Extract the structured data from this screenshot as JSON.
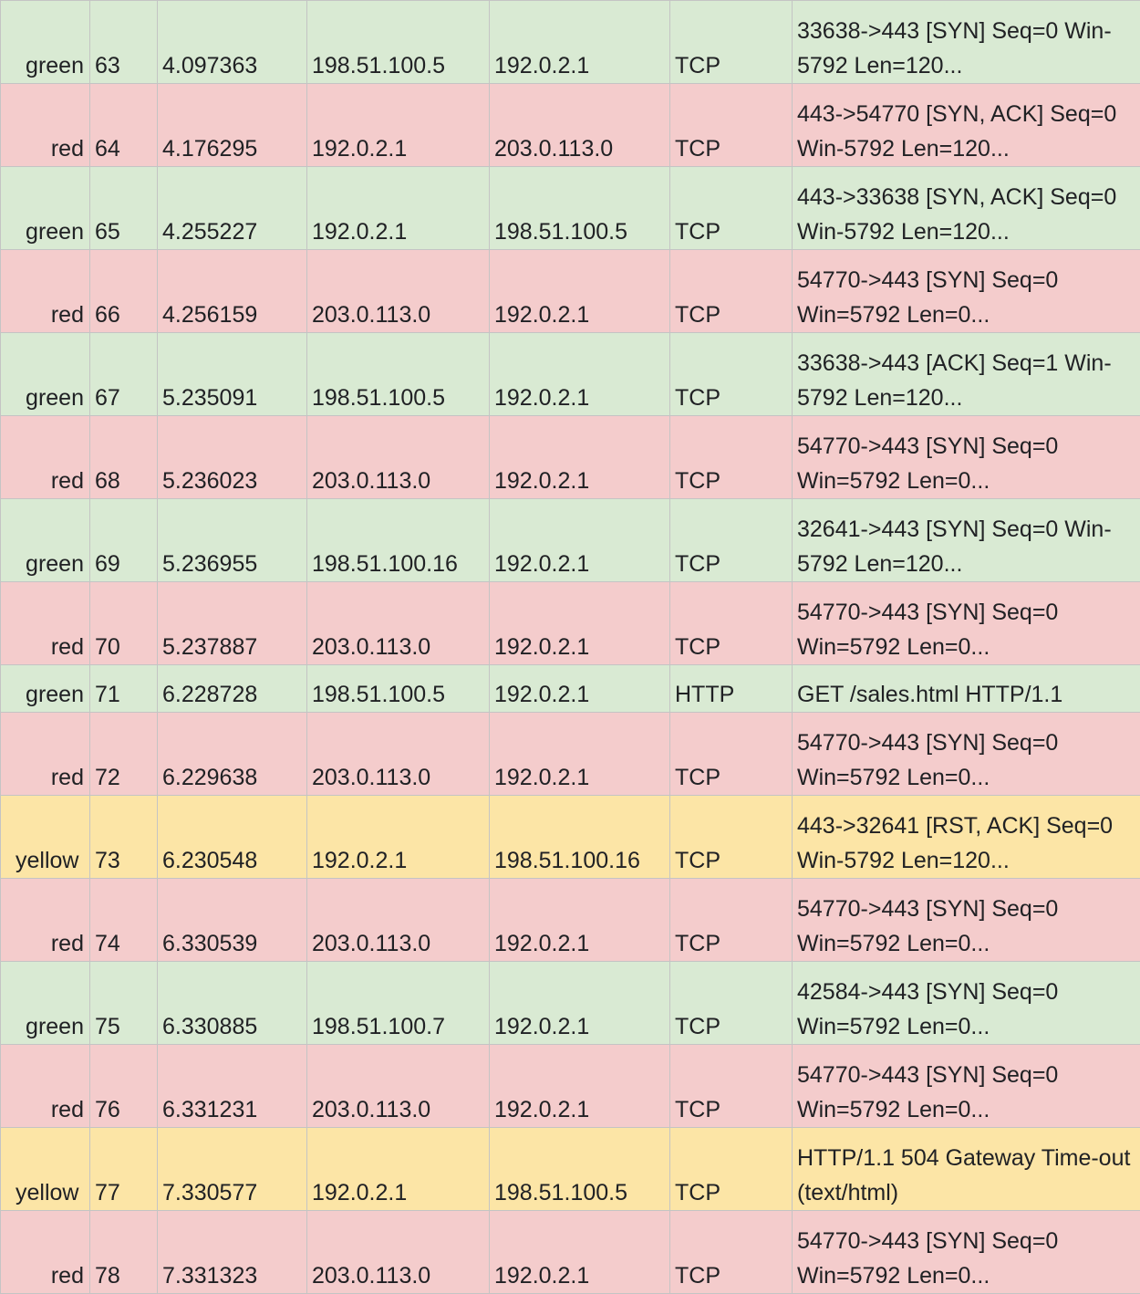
{
  "palette": {
    "green": "#d9ead3",
    "red": "#f4cccc",
    "yellow": "#fce5a6",
    "grid": "#c4c4c4",
    "text": "#202124"
  },
  "rows": [
    {
      "color": "green",
      "no": "63",
      "time": "4.097363",
      "source": "198.51.100.5",
      "destination": "192.0.2.1",
      "protocol": "TCP",
      "info": "33638->443 [SYN] Seq=0 Win-5792 Len=120..."
    },
    {
      "color": "red",
      "no": "64",
      "time": "4.176295",
      "source": "192.0.2.1",
      "destination": "203.0.113.0",
      "protocol": "TCP",
      "info": "443->54770 [SYN, ACK] Seq=0 Win-5792 Len=120..."
    },
    {
      "color": "green",
      "no": "65",
      "time": "4.255227",
      "source": "192.0.2.1",
      "destination": "198.51.100.5",
      "protocol": "TCP",
      "info": "443->33638 [SYN, ACK] Seq=0 Win-5792 Len=120..."
    },
    {
      "color": "red",
      "no": "66",
      "time": "4.256159",
      "source": "203.0.113.0",
      "destination": "192.0.2.1",
      "protocol": "TCP",
      "info": "54770->443 [SYN] Seq=0 Win=5792 Len=0..."
    },
    {
      "color": "green",
      "no": "67",
      "time": "5.235091",
      "source": "198.51.100.5",
      "destination": "192.0.2.1",
      "protocol": "TCP",
      "info": "33638->443 [ACK] Seq=1 Win-5792 Len=120..."
    },
    {
      "color": "red",
      "no": "68",
      "time": "5.236023",
      "source": "203.0.113.0",
      "destination": "192.0.2.1",
      "protocol": "TCP",
      "info": "54770->443 [SYN] Seq=0 Win=5792 Len=0..."
    },
    {
      "color": "green",
      "no": "69",
      "time": "5.236955",
      "source": "198.51.100.16",
      "destination": "192.0.2.1",
      "protocol": "TCP",
      "info": "32641->443 [SYN] Seq=0 Win-5792 Len=120..."
    },
    {
      "color": "red",
      "no": "70",
      "time": "5.237887",
      "source": "203.0.113.0",
      "destination": "192.0.2.1",
      "protocol": "TCP",
      "info": "54770->443 [SYN] Seq=0 Win=5792 Len=0..."
    },
    {
      "color": "green",
      "no": "71",
      "time": "6.228728",
      "source": "198.51.100.5",
      "destination": "192.0.2.1",
      "protocol": "HTTP",
      "info": "GET /sales.html HTTP/1.1"
    },
    {
      "color": "red",
      "no": "72",
      "time": "6.229638",
      "source": "203.0.113.0",
      "destination": "192.0.2.1",
      "protocol": "TCP",
      "info": "54770->443 [SYN] Seq=0 Win=5792 Len=0..."
    },
    {
      "color": "yellow",
      "no": "73",
      "time": "6.230548",
      "source": "192.0.2.1",
      "destination": "198.51.100.16",
      "protocol": "TCP",
      "info": "443->32641 [RST, ACK] Seq=0 Win-5792 Len=120..."
    },
    {
      "color": "red",
      "no": "74",
      "time": "6.330539",
      "source": "203.0.113.0",
      "destination": "192.0.2.1",
      "protocol": "TCP",
      "info": "54770->443 [SYN] Seq=0 Win=5792 Len=0..."
    },
    {
      "color": "green",
      "no": "75",
      "time": "6.330885",
      "source": "198.51.100.7",
      "destination": "192.0.2.1",
      "protocol": "TCP",
      "info": "42584->443 [SYN] Seq=0 Win=5792 Len=0..."
    },
    {
      "color": "red",
      "no": "76",
      "time": "6.331231",
      "source": "203.0.113.0",
      "destination": "192.0.2.1",
      "protocol": "TCP",
      "info": "54770->443 [SYN] Seq=0 Win=5792 Len=0..."
    },
    {
      "color": "yellow",
      "no": "77",
      "time": "7.330577",
      "source": "192.0.2.1",
      "destination": "198.51.100.5",
      "protocol": "TCP",
      "info": "HTTP/1.1 504 Gateway Time-out (text/html)"
    },
    {
      "color": "red",
      "no": "78",
      "time": "7.331323",
      "source": "203.0.113.0",
      "destination": "192.0.2.1",
      "protocol": "TCP",
      "info": "54770->443 [SYN] Seq=0 Win=5792 Len=0..."
    }
  ]
}
